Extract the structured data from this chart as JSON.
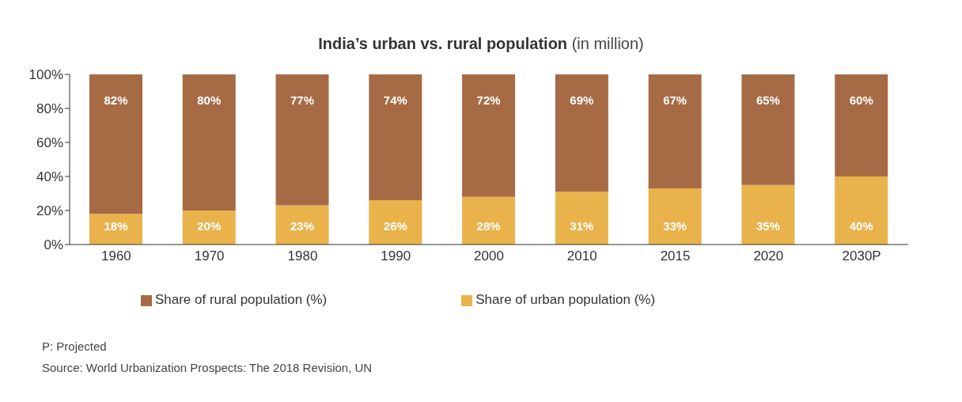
{
  "chart_data": {
    "type": "bar",
    "title": "India’s urban vs. rural population",
    "subtitle": "(in million)",
    "categories": [
      "1960",
      "1970",
      "1980",
      "1990",
      "2000",
      "2010",
      "2015",
      "2020",
      "2030P"
    ],
    "series": [
      {
        "name": "Share of urban population (%)",
        "color": "#e9b24a",
        "values": [
          18,
          20,
          23,
          26,
          28,
          31,
          33,
          35,
          40
        ],
        "value_labels": [
          "18%",
          "20%",
          "23%",
          "26%",
          "28%",
          "31%",
          "33%",
          "35%",
          "40%"
        ]
      },
      {
        "name": "Share of rural population (%)",
        "color": "#a66b45",
        "values": [
          82,
          80,
          77,
          74,
          72,
          69,
          67,
          65,
          60
        ],
        "value_labels": [
          "82%",
          "80%",
          "77%",
          "74%",
          "72%",
          "69%",
          "67%",
          "65%",
          "60%"
        ]
      }
    ],
    "stacked": true,
    "ylim": [
      0,
      100
    ],
    "yticks": [
      {
        "value": 0,
        "label": "0%"
      },
      {
        "value": 20,
        "label": "20%"
      },
      {
        "value": 40,
        "label": "40%"
      },
      {
        "value": 60,
        "label": "60%"
      },
      {
        "value": 80,
        "label": "80%"
      },
      {
        "value": 100,
        "label": "100%"
      }
    ],
    "grid": false,
    "legend": "bottom",
    "annotations": [
      "P: Projected",
      "Source: World Urbanization Prospects: The 2018 Revision, UN"
    ]
  }
}
